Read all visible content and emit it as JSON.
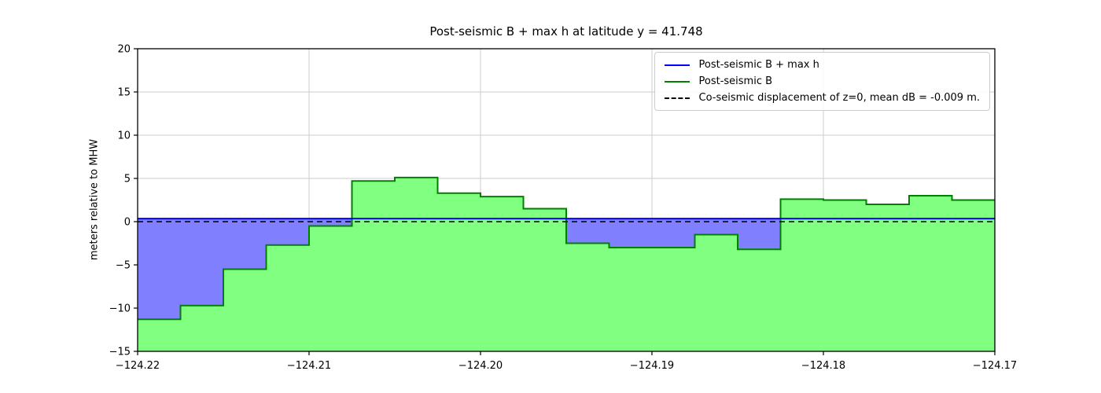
{
  "figure": {
    "title": "Post-seismic B + max h at latitude y = 41.748",
    "ylabel": "meters relative to MHW"
  },
  "legend": {
    "items": [
      {
        "label": "Post-seismic B + max h",
        "color": "#0000ff",
        "dash": "solid"
      },
      {
        "label": "Post-seismic B",
        "color": "#008000",
        "dash": "solid"
      },
      {
        "label": "Co-seismic displacement of z=0, mean dB = -0.009 m.",
        "color": "#000000",
        "dash": "dashed"
      }
    ]
  },
  "chart_data": {
    "type": "area",
    "title": "Post-seismic B + max h at latitude y = 41.748",
    "xlabel": "",
    "ylabel": "meters relative to MHW",
    "xlim": [
      -124.22,
      -124.17
    ],
    "ylim": [
      -15,
      20
    ],
    "xticks": [
      -124.22,
      -124.21,
      -124.2,
      -124.19,
      -124.18,
      -124.17
    ],
    "yticks": [
      -15,
      -10,
      -5,
      0,
      5,
      10,
      15,
      20
    ],
    "grid": true,
    "legend_position": "upper right",
    "colors": {
      "b_plus_h_line": "#0000ff",
      "b_line": "#008000",
      "b_fill": "#80ff80",
      "water_fill": "#8080ff",
      "coseismic_line": "#000000",
      "grid": "#cccccc"
    },
    "series": [
      {
        "name": "Post-seismic B + max h",
        "type": "hline",
        "value": 0.35
      },
      {
        "name": "Post-seismic B",
        "type": "step",
        "edges": [
          -124.22,
          -124.2175,
          -124.215,
          -124.2125,
          -124.21,
          -124.2075,
          -124.205,
          -124.2025,
          -124.2,
          -124.1975,
          -124.195,
          -124.1925,
          -124.19,
          -124.1875,
          -124.185,
          -124.1825,
          -124.18,
          -124.1775,
          -124.175,
          -124.1725,
          -124.17
        ],
        "values": [
          -11.3,
          -9.7,
          -5.5,
          -2.7,
          -0.5,
          4.7,
          5.1,
          3.3,
          2.9,
          1.5,
          -2.5,
          -3.0,
          -3.0,
          -1.5,
          -3.2,
          2.6,
          2.5,
          2.0,
          3.0,
          2.5
        ]
      },
      {
        "name": "Co-seismic displacement of z=0, mean dB = -0.009 m.",
        "type": "hline_dashed",
        "value": 0.0
      }
    ]
  }
}
